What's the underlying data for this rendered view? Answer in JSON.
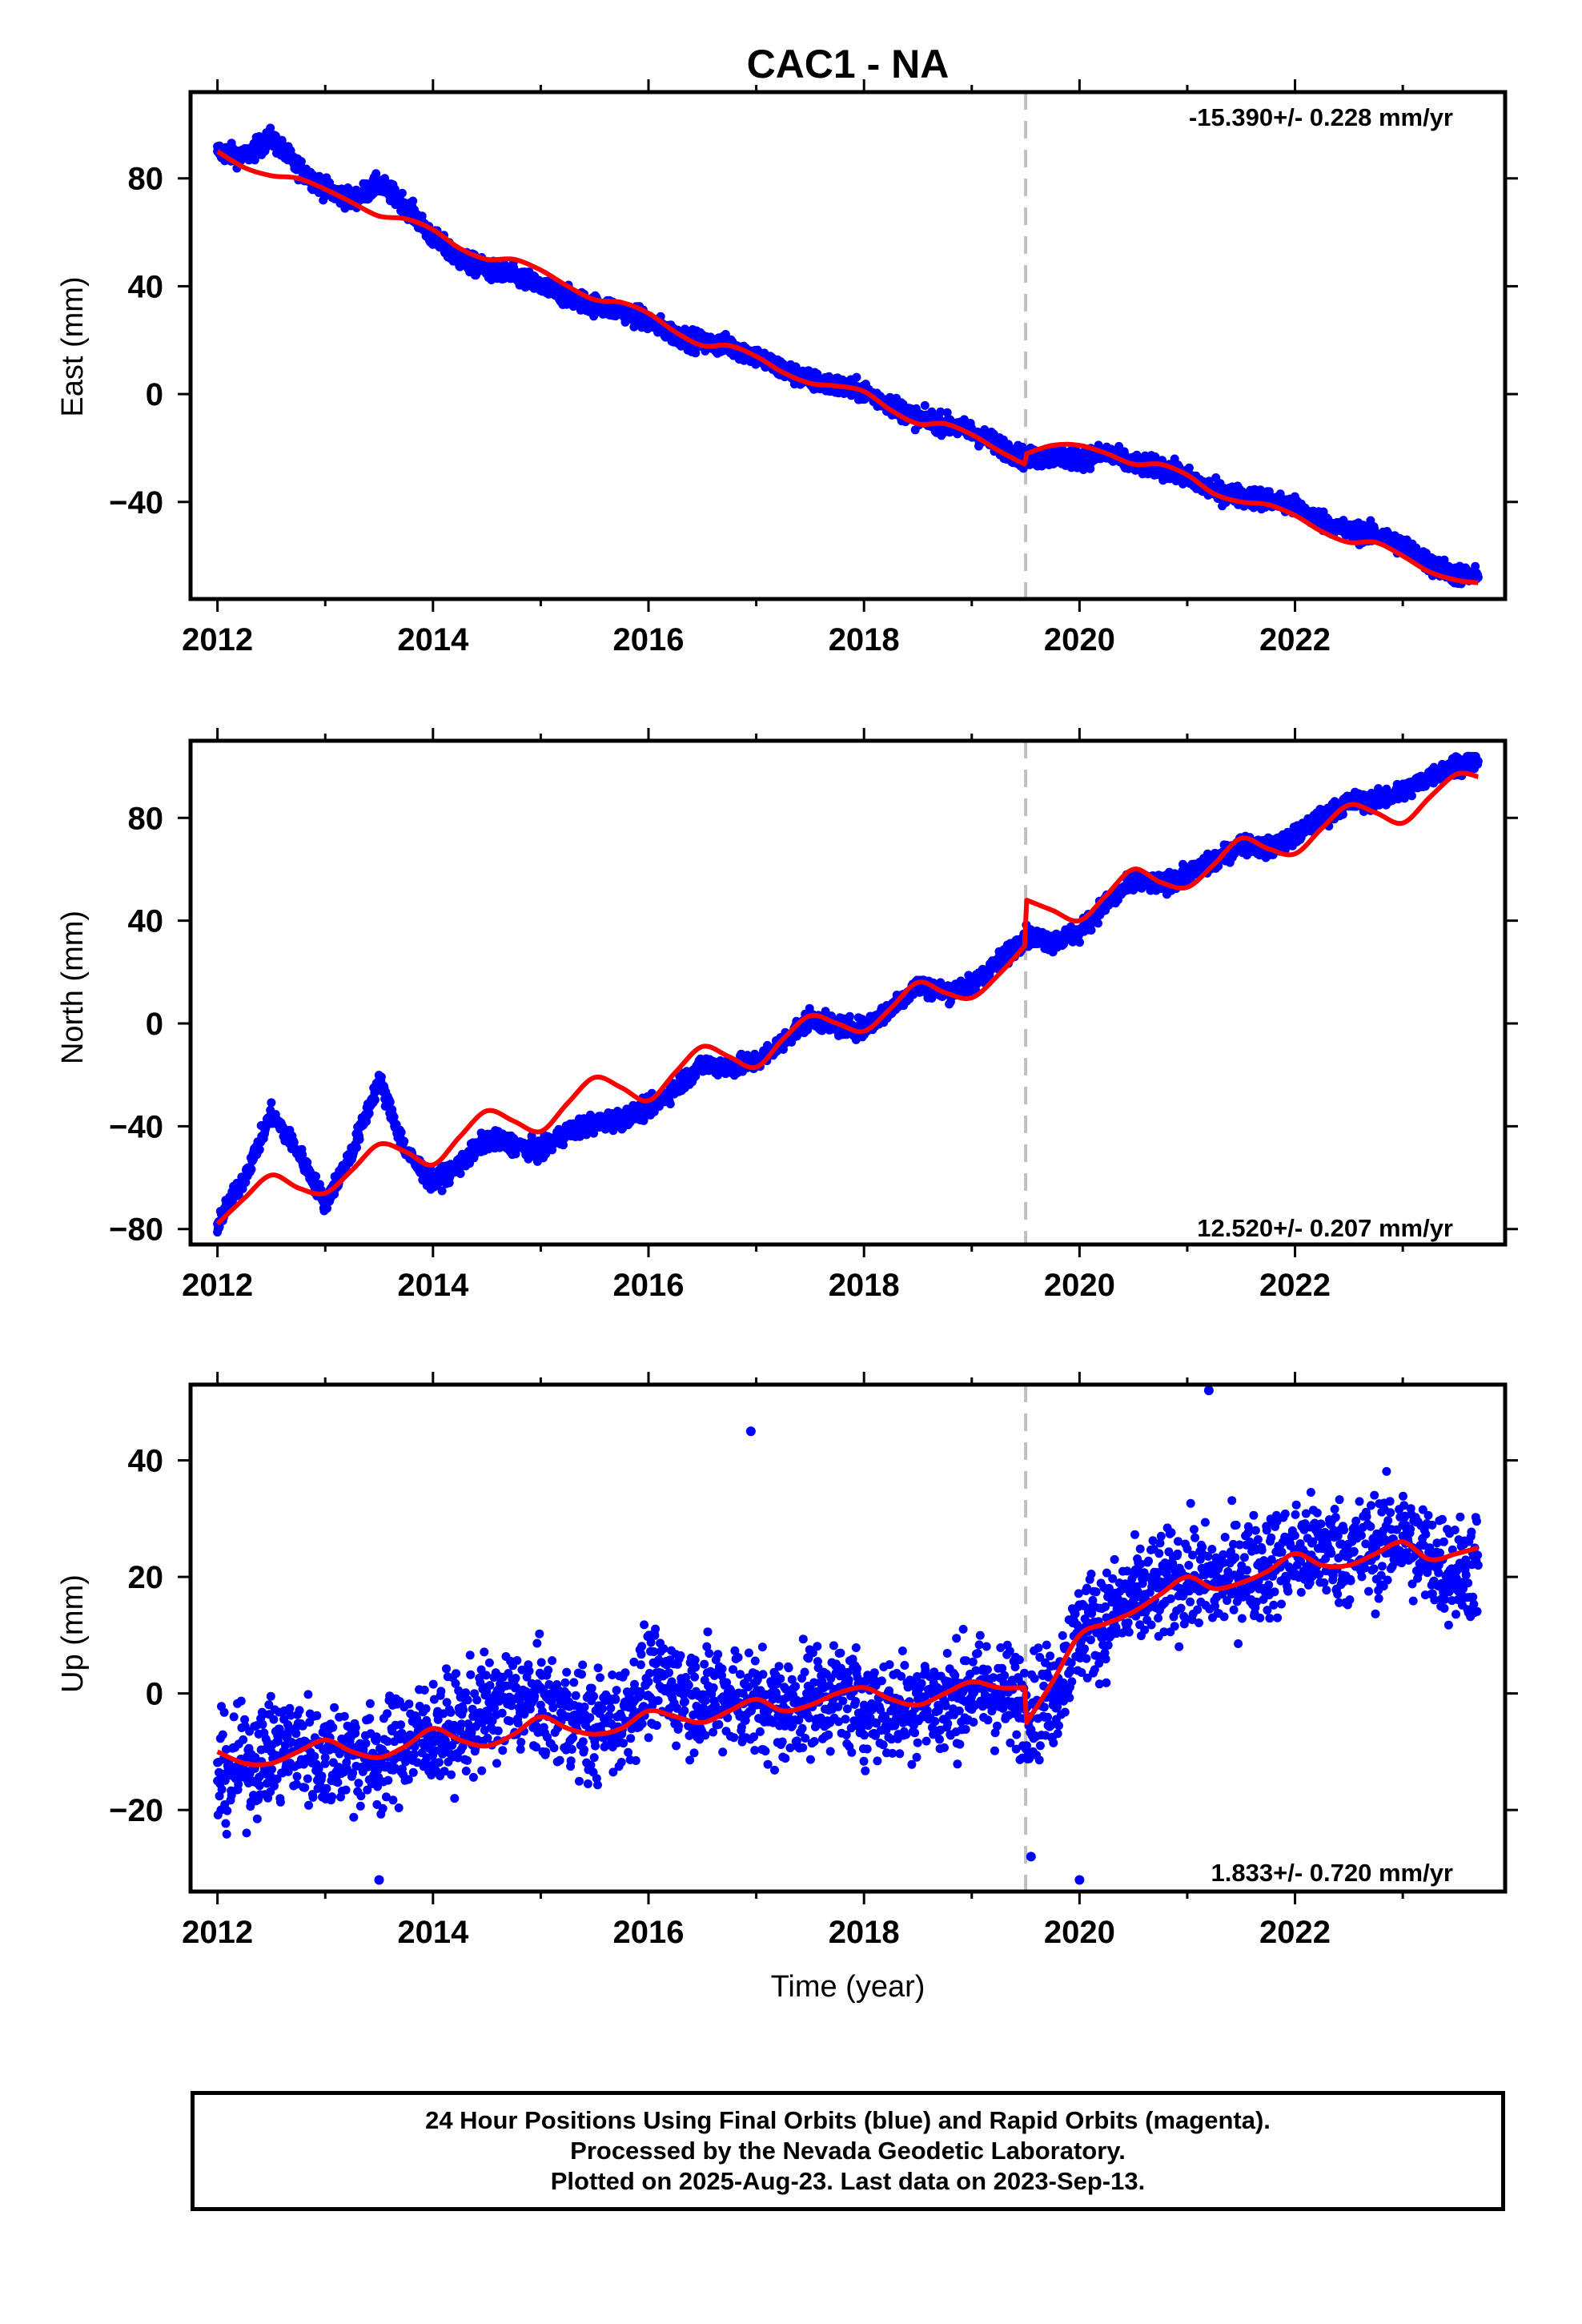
{
  "title": "CAC1 - NA",
  "colors": {
    "data_points": "#0000ff",
    "model_fit": "#ff0000",
    "event_line": "#c0c0c0",
    "axes": "#000000"
  },
  "footer": {
    "line1": "24 Hour Positions Using Final Orbits (blue) and Rapid Orbits (magenta).",
    "line2": "Processed by the Nevada Geodetic Laboratory.",
    "line3": "Plotted on 2025-Aug-23. Last data on 2023-Sep-13."
  },
  "chart_data": [
    {
      "type": "scatter",
      "component": "east",
      "ylabel": "East (mm)",
      "xlabel": "",
      "rate_text": "-15.390+/- 0.228 mm/yr",
      "xlim": [
        2011.75,
        2023.95
      ],
      "ylim": [
        -76,
        112
      ],
      "xticks": [
        2012,
        2014,
        2016,
        2018,
        2020,
        2022
      ],
      "yticks": [
        -40,
        0,
        40,
        80
      ],
      "event_line_x": 2019.5,
      "series": [
        {
          "name": "",
          "style": "points",
          "x": [
            2012.0,
            2012.25,
            2012.5,
            2012.75,
            2013.0,
            2013.25,
            2013.5,
            2013.75,
            2014.0,
            2014.25,
            2014.5,
            2014.75,
            2015.0,
            2015.25,
            2015.5,
            2015.75,
            2016.0,
            2016.25,
            2016.5,
            2016.75,
            2017.0,
            2017.25,
            2017.5,
            2017.75,
            2018.0,
            2018.25,
            2018.5,
            2018.75,
            2019.0,
            2019.25,
            2019.5,
            2019.75,
            2020.0,
            2020.25,
            2020.5,
            2020.75,
            2021.0,
            2021.25,
            2021.5,
            2021.75,
            2022.0,
            2022.25,
            2022.5,
            2022.75,
            2023.0,
            2023.25,
            2023.5,
            2023.7
          ],
          "y": [
            90,
            88,
            95,
            84,
            76,
            72,
            78,
            70,
            58,
            50,
            46,
            44,
            40,
            36,
            33,
            31,
            27,
            22,
            19,
            18,
            14,
            9,
            5,
            3,
            1,
            -4,
            -9,
            -11,
            -14,
            -19,
            -24,
            -23,
            -24,
            -22,
            -26,
            -27,
            -31,
            -36,
            -38,
            -39,
            -42,
            -47,
            -51,
            -52,
            -56,
            -63,
            -67,
            -68
          ]
        },
        {
          "name": "",
          "style": "line",
          "x": [
            2012.0,
            2012.25,
            2012.5,
            2012.75,
            2013.0,
            2013.25,
            2013.5,
            2013.75,
            2014.0,
            2014.25,
            2014.5,
            2014.75,
            2015.0,
            2015.25,
            2015.5,
            2015.75,
            2016.0,
            2016.25,
            2016.5,
            2016.75,
            2017.0,
            2017.25,
            2017.5,
            2017.75,
            2018.0,
            2018.25,
            2018.5,
            2018.75,
            2019.0,
            2019.25,
            2019.49,
            2019.51,
            2019.75,
            2020.0,
            2020.25,
            2020.5,
            2020.75,
            2021.0,
            2021.25,
            2021.5,
            2021.75,
            2022.0,
            2022.25,
            2022.5,
            2022.75,
            2023.0,
            2023.25,
            2023.5,
            2023.7
          ],
          "y": [
            90,
            84,
            81,
            80,
            76,
            71,
            66,
            65,
            61,
            54,
            50,
            50,
            46,
            40,
            35,
            34,
            30,
            23,
            18,
            18,
            14,
            8,
            4,
            3,
            1,
            -6,
            -11,
            -11,
            -15,
            -21,
            -26,
            -22,
            -19,
            -19,
            -22,
            -26,
            -26,
            -30,
            -37,
            -40,
            -41,
            -45,
            -51,
            -55,
            -55,
            -60,
            -66,
            -69,
            -70
          ]
        }
      ]
    },
    {
      "type": "scatter",
      "component": "north",
      "ylabel": "North (mm)",
      "xlabel": "",
      "rate_text": "12.520+/- 0.207 mm/yr",
      "xlim": [
        2011.75,
        2023.95
      ],
      "ylim": [
        -86,
        110
      ],
      "xticks": [
        2012,
        2014,
        2016,
        2018,
        2020,
        2022
      ],
      "yticks": [
        -80,
        -40,
        0,
        40,
        80
      ],
      "event_line_x": 2019.5,
      "series": [
        {
          "name": "",
          "style": "points",
          "x": [
            2012.0,
            2012.25,
            2012.5,
            2012.75,
            2013.0,
            2013.25,
            2013.5,
            2013.75,
            2014.0,
            2014.25,
            2014.5,
            2014.75,
            2015.0,
            2015.25,
            2015.5,
            2015.75,
            2016.0,
            2016.25,
            2016.5,
            2016.75,
            2017.0,
            2017.25,
            2017.5,
            2017.75,
            2018.0,
            2018.25,
            2018.5,
            2018.75,
            2019.0,
            2019.25,
            2019.5,
            2019.75,
            2020.0,
            2020.25,
            2020.5,
            2020.75,
            2021.0,
            2021.25,
            2021.5,
            2021.75,
            2022.0,
            2022.25,
            2022.5,
            2022.75,
            2023.0,
            2023.25,
            2023.5,
            2023.7
          ],
          "y": [
            -78,
            -60,
            -35,
            -50,
            -70,
            -50,
            -22,
            -50,
            -62,
            -55,
            -45,
            -47,
            -50,
            -42,
            -39,
            -37,
            -33,
            -25,
            -16,
            -17,
            -15,
            -7,
            2,
            -1,
            -2,
            6,
            15,
            12,
            15,
            24,
            34,
            32,
            35,
            47,
            55,
            54,
            58,
            63,
            70,
            68,
            73,
            80,
            86,
            87,
            90,
            96,
            101,
            102
          ]
        },
        {
          "name": "",
          "style": "line",
          "x": [
            2012.0,
            2012.25,
            2012.5,
            2012.75,
            2013.0,
            2013.25,
            2013.5,
            2013.75,
            2014.0,
            2014.25,
            2014.5,
            2014.75,
            2015.0,
            2015.25,
            2015.5,
            2015.75,
            2016.0,
            2016.25,
            2016.5,
            2016.75,
            2017.0,
            2017.25,
            2017.5,
            2017.75,
            2018.0,
            2018.25,
            2018.5,
            2018.75,
            2019.0,
            2019.25,
            2019.49,
            2019.51,
            2019.75,
            2020.0,
            2020.25,
            2020.5,
            2020.75,
            2021.0,
            2021.25,
            2021.5,
            2021.75,
            2022.0,
            2022.25,
            2022.5,
            2022.75,
            2023.0,
            2023.25,
            2023.5,
            2023.7
          ],
          "y": [
            -78,
            -68,
            -59,
            -64,
            -66,
            -57,
            -47,
            -50,
            -55,
            -44,
            -34,
            -38,
            -42,
            -31,
            -21,
            -25,
            -30,
            -19,
            -9,
            -13,
            -17,
            -6,
            3,
            0,
            -3,
            6,
            16,
            12,
            10,
            19,
            30,
            48,
            44,
            40,
            50,
            60,
            55,
            53,
            62,
            72,
            68,
            66,
            76,
            85,
            82,
            78,
            88,
            97,
            96
          ]
        }
      ]
    },
    {
      "type": "scatter",
      "component": "up",
      "ylabel": "Up (mm)",
      "xlabel": "Time (year)",
      "rate_text": "1.833+/- 0.720 mm/yr",
      "xlim": [
        2011.75,
        2023.95
      ],
      "ylim": [
        -34,
        53
      ],
      "xticks": [
        2012,
        2014,
        2016,
        2018,
        2020,
        2022
      ],
      "yticks": [
        -20,
        0,
        20,
        40
      ],
      "event_line_x": 2019.5,
      "series": [
        {
          "name": "",
          "style": "points",
          "x": [
            2012.0,
            2012.25,
            2012.5,
            2012.75,
            2013.0,
            2013.25,
            2013.5,
            2013.75,
            2014.0,
            2014.25,
            2014.5,
            2014.75,
            2015.0,
            2015.25,
            2015.5,
            2015.75,
            2016.0,
            2016.25,
            2016.5,
            2016.75,
            2017.0,
            2017.25,
            2017.5,
            2017.75,
            2018.0,
            2018.25,
            2018.5,
            2018.75,
            2019.0,
            2019.25,
            2019.5,
            2019.75,
            2020.0,
            2020.25,
            2020.5,
            2020.75,
            2021.0,
            2021.25,
            2021.5,
            2021.75,
            2022.0,
            2022.25,
            2022.5,
            2022.75,
            2023.0,
            2023.25,
            2023.5,
            2023.7
          ],
          "y": [
            -15,
            -12,
            -10,
            -9,
            -11,
            -10,
            -12,
            -8,
            -7,
            -6,
            -3,
            -1,
            -2,
            -4,
            -6,
            -4,
            2,
            1,
            -1,
            0,
            -2,
            -3,
            -1,
            0,
            -2,
            -3,
            -1,
            -2,
            1,
            0,
            -2,
            -1,
            11,
            13,
            16,
            18,
            20,
            19,
            21,
            22,
            24,
            25,
            24,
            25,
            27,
            23,
            21,
            22
          ],
          "outliers_x": [
            2016.95,
            2021.2,
            2019.55,
            2013.5,
            2020.0
          ],
          "outliers_y": [
            45,
            52,
            -28,
            -32,
            -32
          ]
        },
        {
          "name": "",
          "style": "line",
          "x": [
            2012.0,
            2012.25,
            2012.5,
            2012.75,
            2013.0,
            2013.25,
            2013.5,
            2013.75,
            2014.0,
            2014.25,
            2014.5,
            2014.75,
            2015.0,
            2015.25,
            2015.5,
            2015.75,
            2016.0,
            2016.25,
            2016.5,
            2016.75,
            2017.0,
            2017.25,
            2017.5,
            2017.75,
            2018.0,
            2018.25,
            2018.5,
            2018.75,
            2019.0,
            2019.25,
            2019.49,
            2019.51,
            2019.75,
            2020.0,
            2020.25,
            2020.5,
            2020.75,
            2021.0,
            2021.25,
            2021.5,
            2021.75,
            2022.0,
            2022.25,
            2022.5,
            2022.75,
            2023.0,
            2023.25,
            2023.5,
            2023.7
          ],
          "y": [
            -10,
            -12,
            -12,
            -10,
            -8,
            -10,
            -11,
            -9,
            -6,
            -8,
            -9,
            -7,
            -4,
            -6,
            -7,
            -6,
            -3,
            -4,
            -5,
            -3,
            -1,
            -3,
            -2,
            0,
            1,
            -1,
            -2,
            0,
            2,
            1,
            1,
            -5,
            2,
            10,
            12,
            14,
            17,
            20,
            18,
            19,
            21,
            24,
            22,
            22,
            24,
            26,
            23,
            24,
            25
          ]
        }
      ]
    }
  ]
}
